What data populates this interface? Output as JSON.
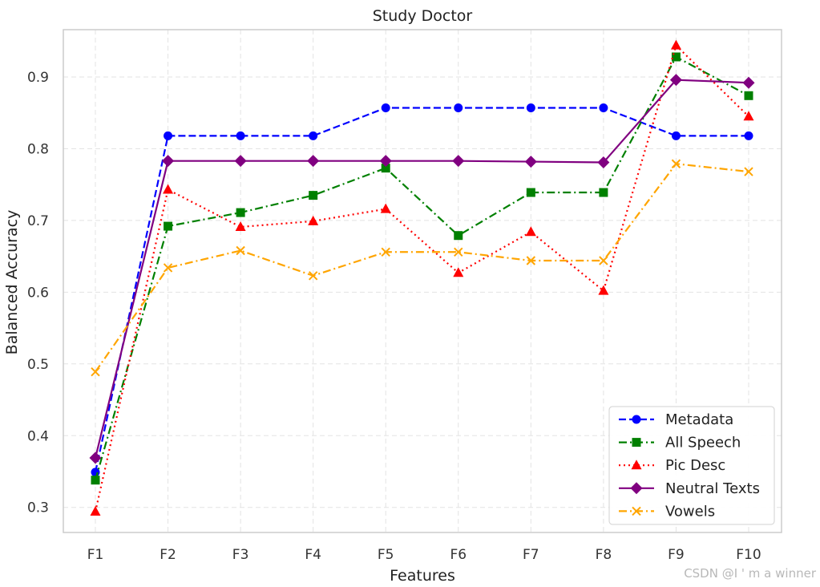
{
  "chart_data": {
    "type": "line",
    "title": "Study Doctor",
    "xlabel": "Features",
    "ylabel": "Balanced Accuracy",
    "categories": [
      "F1",
      "F2",
      "F3",
      "F4",
      "F5",
      "F6",
      "F7",
      "F8",
      "F9",
      "F10"
    ],
    "ylim": [
      0.265,
      0.966
    ],
    "yticks": [
      0.3,
      0.4,
      0.5,
      0.6,
      0.7,
      0.8,
      0.9
    ],
    "ytick_labels": [
      "0.3",
      "0.4",
      "0.5",
      "0.6",
      "0.7",
      "0.8",
      "0.9"
    ],
    "grid": true,
    "legend_position": "lower-right",
    "series": [
      {
        "name": "Metadata",
        "color": "#0000ff",
        "dash": "dashed",
        "marker": "circle",
        "values": [
          0.349,
          0.818,
          0.818,
          0.818,
          0.857,
          0.857,
          0.857,
          0.857,
          0.818,
          0.818
        ]
      },
      {
        "name": "All Speech",
        "color": "#008000",
        "dash": "dashdot",
        "marker": "square",
        "values": [
          0.338,
          0.692,
          0.711,
          0.735,
          0.773,
          0.679,
          0.739,
          0.739,
          0.928,
          0.874
        ]
      },
      {
        "name": "Pic Desc",
        "color": "#ff0000",
        "dash": "dotted",
        "marker": "triangle",
        "values": [
          0.294,
          0.743,
          0.691,
          0.699,
          0.716,
          0.627,
          0.684,
          0.602,
          0.944,
          0.845
        ]
      },
      {
        "name": "Neutral Texts",
        "color": "#800080",
        "dash": "solid",
        "marker": "diamond",
        "values": [
          0.369,
          0.783,
          0.783,
          0.783,
          0.783,
          0.783,
          0.782,
          0.781,
          0.896,
          0.892
        ]
      },
      {
        "name": "Vowels",
        "color": "#ffa500",
        "dash": "dashdot",
        "marker": "x",
        "values": [
          0.489,
          0.634,
          0.658,
          0.623,
          0.656,
          0.656,
          0.644,
          0.644,
          0.779,
          0.768
        ]
      }
    ]
  },
  "watermark": "CSDN @I ' m a winner"
}
